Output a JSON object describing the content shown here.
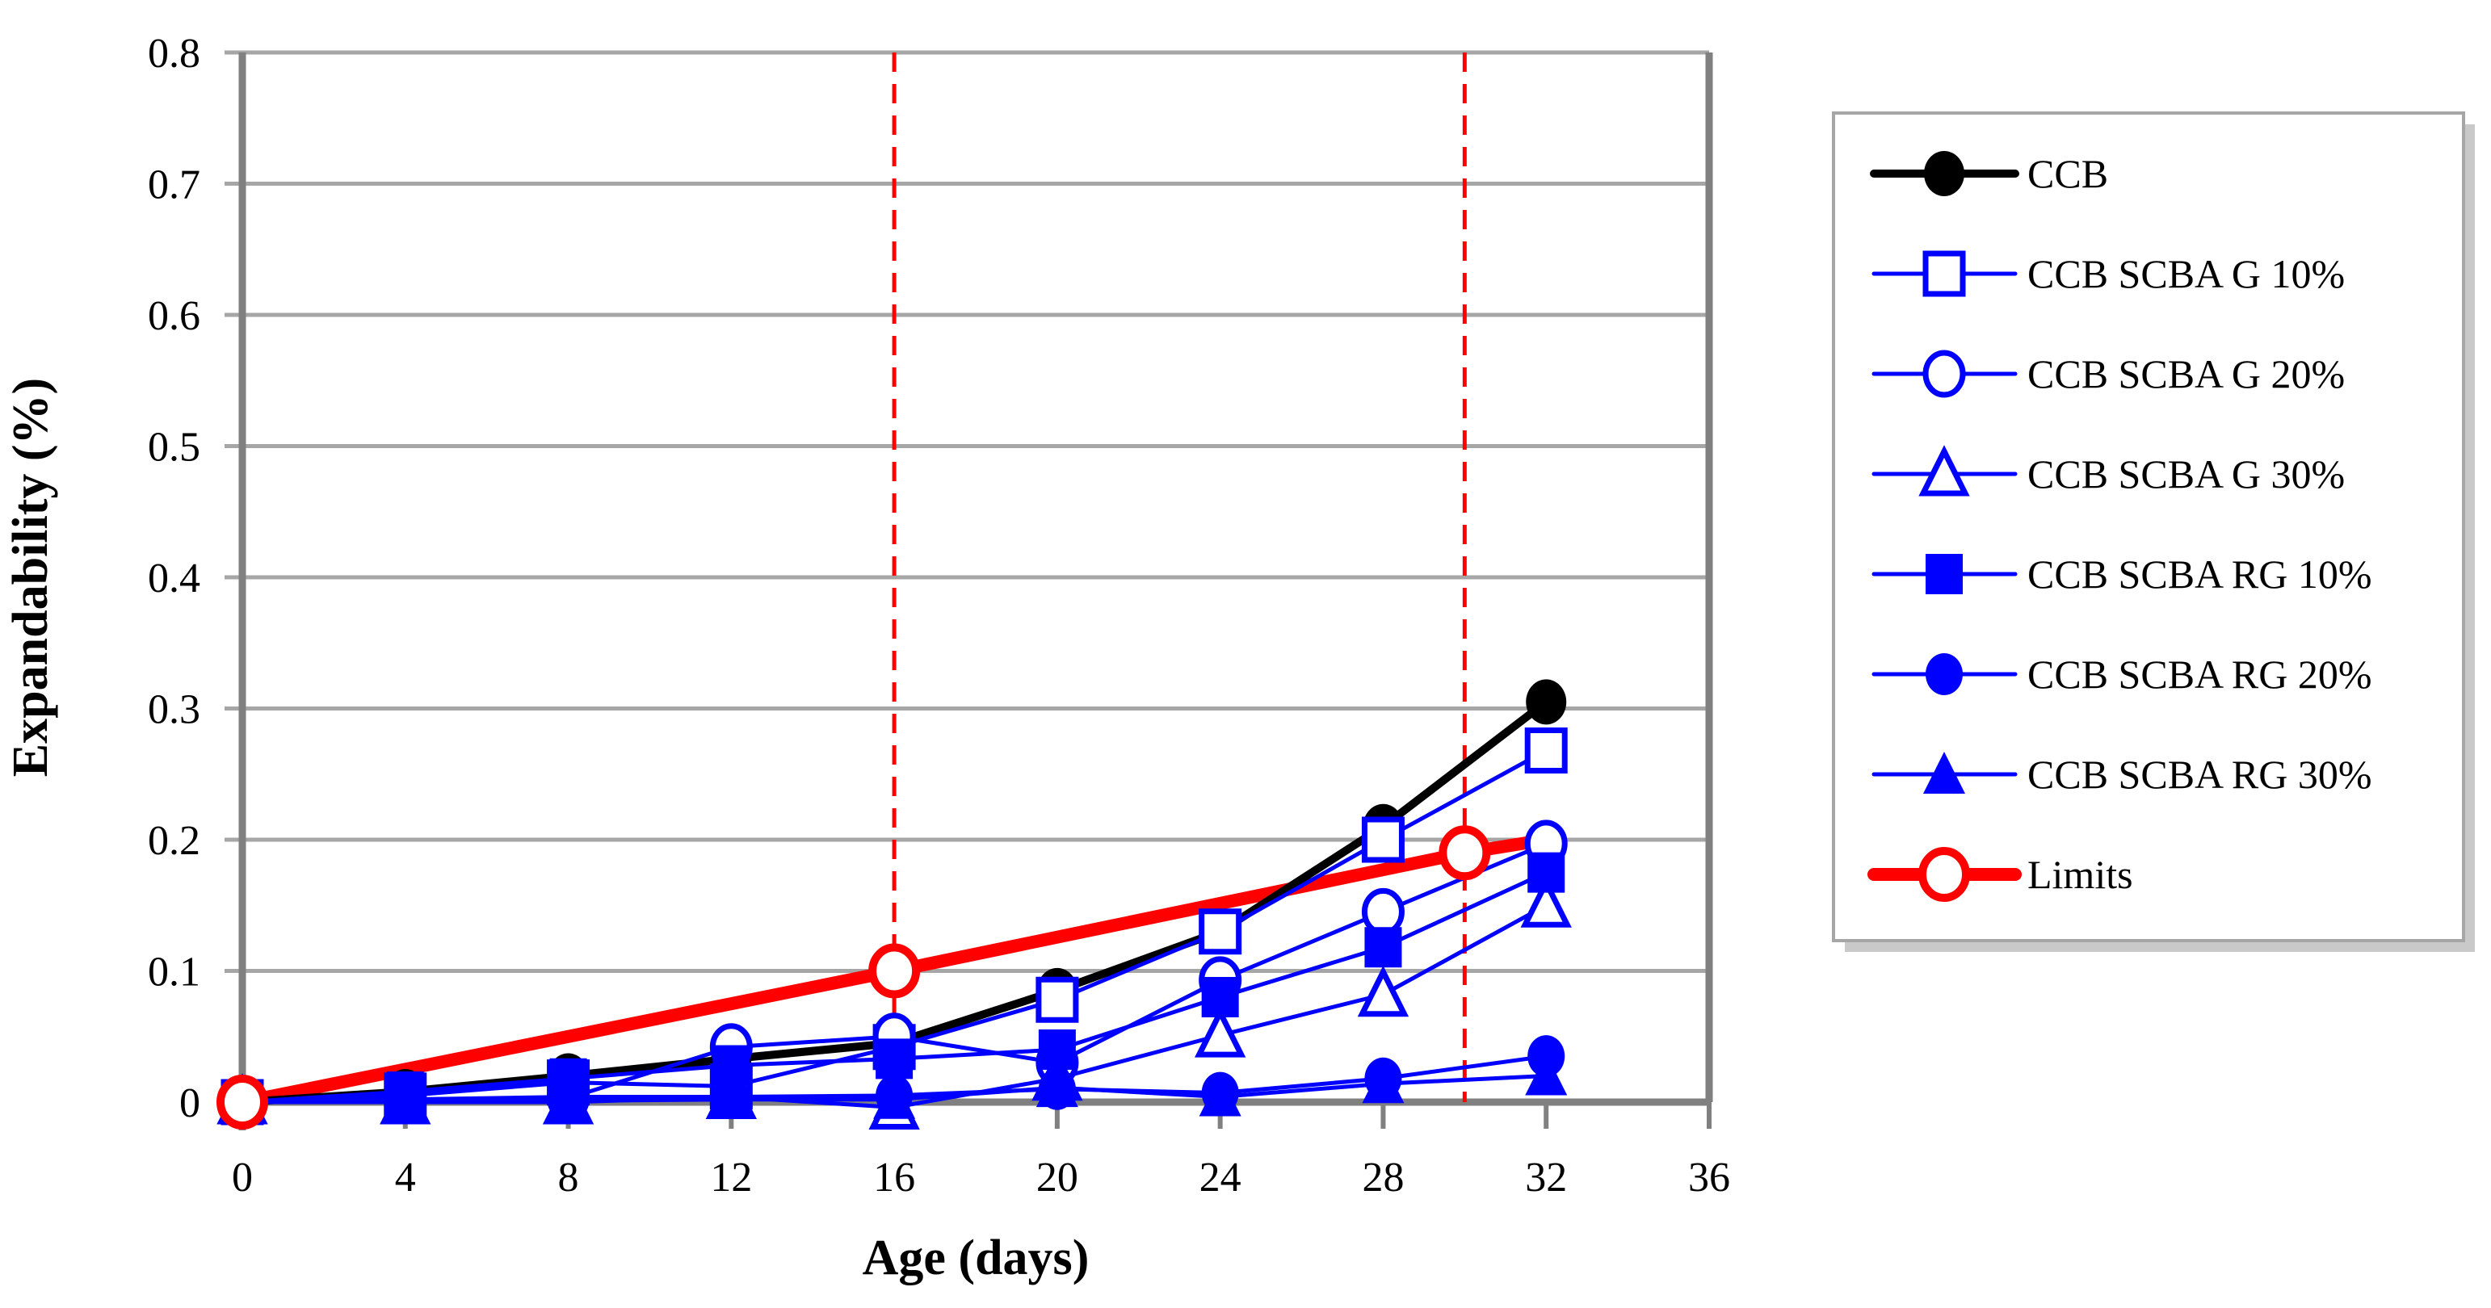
{
  "figure": {
    "background": "#ffffff",
    "plot_border_color": "#808080",
    "grid_color": "#a6a6a6",
    "legend_border_color": "#a6a6a6",
    "legend_shadow_color": "#c9c9c9"
  },
  "chart_data": {
    "type": "line",
    "title": "",
    "xlabel": "Age (days)",
    "ylabel": "Expandability (%)",
    "xlim": [
      0,
      36
    ],
    "ylim": [
      0,
      0.8
    ],
    "xticks": [
      0,
      4,
      8,
      12,
      16,
      20,
      24,
      28,
      32,
      36
    ],
    "yticks": [
      0,
      0.1,
      0.2,
      0.3,
      0.4,
      0.5,
      0.6,
      0.7,
      0.8
    ],
    "grid": "horizontal",
    "legend_position": "right",
    "x": [
      0,
      4,
      8,
      12,
      16,
      20,
      24,
      28,
      32
    ],
    "series": [
      {
        "name": "CCB",
        "color": "#000000",
        "marker": "circle",
        "marker_fill": "filled",
        "line_width": 10,
        "values": [
          0,
          0.008,
          0.02,
          0.033,
          0.045,
          0.085,
          0.13,
          0.21,
          0.305
        ]
      },
      {
        "name": "CCB SCBA G 10%",
        "color": "#0000ff",
        "marker": "square",
        "marker_fill": "open",
        "line_width": 5,
        "values": [
          0,
          0.005,
          0.015,
          0.012,
          0.042,
          0.078,
          0.13,
          0.2,
          0.268
        ]
      },
      {
        "name": "CCB SCBA G 20%",
        "color": "#0000ff",
        "marker": "circle",
        "marker_fill": "open",
        "line_width": 5,
        "values": [
          0,
          0.002,
          0.003,
          0.042,
          0.05,
          0.03,
          0.093,
          0.145,
          0.197
        ]
      },
      {
        "name": "CCB SCBA G 30%",
        "color": "#0000ff",
        "marker": "triangle",
        "marker_fill": "open",
        "line_width": 5,
        "values": [
          0,
          0.0,
          0.0,
          0.004,
          -0.004,
          0.018,
          0.051,
          0.082,
          0.15
        ]
      },
      {
        "name": "CCB SCBA RG 10%",
        "color": "#0000ff",
        "marker": "square",
        "marker_fill": "filled",
        "line_width": 5,
        "values": [
          0,
          0.008,
          0.018,
          0.028,
          0.033,
          0.04,
          0.08,
          0.118,
          0.175
        ]
      },
      {
        "name": "CCB SCBA RG 20%",
        "color": "#0000ff",
        "marker": "circle",
        "marker_fill": "filled",
        "line_width": 5,
        "values": [
          0,
          0.002,
          0.004,
          0.004,
          0.005,
          0.01,
          0.007,
          0.018,
          0.035
        ]
      },
      {
        "name": "CCB SCBA RG 30%",
        "color": "#0000ff",
        "marker": "triangle",
        "marker_fill": "filled",
        "line_width": 5,
        "values": [
          0,
          0.0,
          0.001,
          0.002,
          0.002,
          0.011,
          0.004,
          0.014,
          0.02
        ]
      },
      {
        "name": "Limits",
        "color": "#ff0000",
        "marker": "circle",
        "marker_fill": "open",
        "line_width": 16,
        "x": [
          0,
          16,
          30,
          32
        ],
        "values": [
          0,
          0.1,
          0.19,
          0.2
        ],
        "marker_x": [
          0,
          16,
          30
        ]
      }
    ],
    "reference_lines": [
      {
        "x": 16,
        "color": "#ff0000",
        "style": "dashed"
      },
      {
        "x": 30,
        "color": "#ff0000",
        "style": "dashed"
      }
    ]
  }
}
